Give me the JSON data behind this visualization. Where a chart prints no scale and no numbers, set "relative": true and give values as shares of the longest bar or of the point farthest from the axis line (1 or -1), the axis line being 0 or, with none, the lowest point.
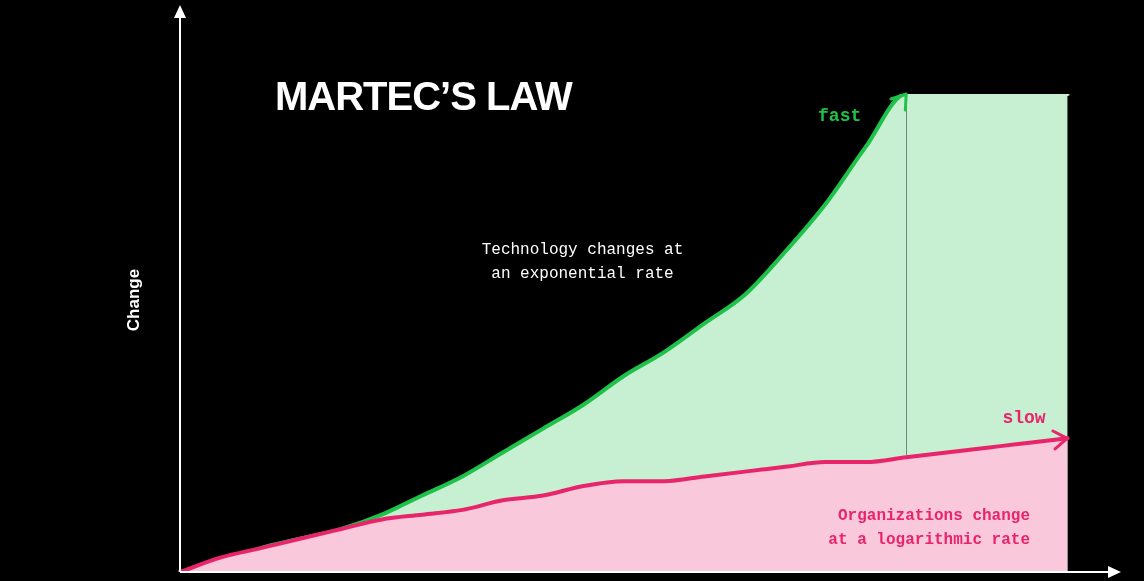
{
  "chart_data": {
    "type": "area",
    "title": "MARTEC’S LAW",
    "ylabel": "Change",
    "relative": true,
    "legend": false,
    "marker": "none",
    "categories": [
      null,
      null,
      null,
      null,
      null,
      null,
      null,
      null,
      null,
      null,
      null,
      null,
      null,
      null,
      null,
      null,
      null,
      null,
      null,
      null,
      null,
      null,
      null,
      null
    ],
    "series": [
      {
        "type": "area",
        "name": "fast",
        "color": "#1ec24a",
        "values": [
          0,
          0.02,
          0.05,
          0.07,
          0.09,
          0.12,
          0.16,
          0.2,
          0.25,
          0.3,
          0.35,
          0.41,
          0.46,
          0.52,
          0.58,
          0.67,
          0.77,
          0.89,
          1,
          1,
          1,
          1,
          1,
          null
        ]
      },
      {
        "type": "area",
        "name": "slow",
        "color": "#e8246a",
        "values": [
          0,
          0.03,
          0.05,
          0.07,
          0.09,
          0.11,
          0.12,
          0.13,
          0.15,
          0.16,
          0.18,
          0.19,
          0.19,
          0.2,
          0.21,
          0.22,
          0.23,
          0.23,
          0.24,
          0.25,
          0.26,
          0.27,
          0.28,
          null
        ]
      }
    ],
    "annotations": [
      "Technology changes at an exponential rate",
      "Organizations change at a logarithmic rate"
    ]
  }
}
